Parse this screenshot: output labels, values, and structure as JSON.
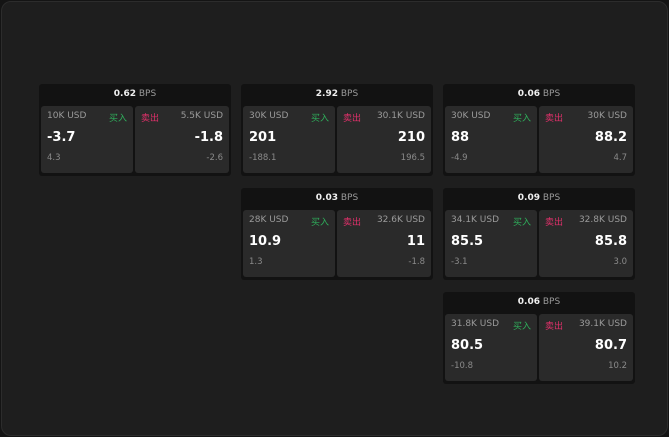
{
  "labels": {
    "buy": "买入",
    "sell": "卖出",
    "unit": "BPS"
  },
  "colors": {
    "buy": "#2fae5b",
    "sell": "#e0306a"
  },
  "panels": [
    {
      "bps": "0.62",
      "buy": {
        "size": "10K USD",
        "price": "-3.7",
        "change": "4.3"
      },
      "sell": {
        "size": "5.5K USD",
        "price": "-1.8",
        "change": "-2.6"
      }
    },
    {
      "bps": "2.92",
      "buy": {
        "size": "30K USD",
        "price": "201",
        "change": "-188.1"
      },
      "sell": {
        "size": "30.1K USD",
        "price": "210",
        "change": "196.5"
      }
    },
    {
      "bps": "0.06",
      "buy": {
        "size": "30K USD",
        "price": "88",
        "change": "-4.9"
      },
      "sell": {
        "size": "30K USD",
        "price": "88.2",
        "change": "4.7"
      }
    },
    {
      "bps": "0.03",
      "buy": {
        "size": "28K USD",
        "price": "10.9",
        "change": "1.3"
      },
      "sell": {
        "size": "32.6K USD",
        "price": "11",
        "change": "-1.8"
      }
    },
    {
      "bps": "0.09",
      "buy": {
        "size": "34.1K USD",
        "price": "85.5",
        "change": "-3.1"
      },
      "sell": {
        "size": "32.8K USD",
        "price": "85.8",
        "change": "3.0"
      }
    },
    {
      "bps": "0.06",
      "buy": {
        "size": "31.8K USD",
        "price": "80.5",
        "change": "-10.8"
      },
      "sell": {
        "size": "39.1K USD",
        "price": "80.7",
        "change": "10.2"
      }
    }
  ]
}
